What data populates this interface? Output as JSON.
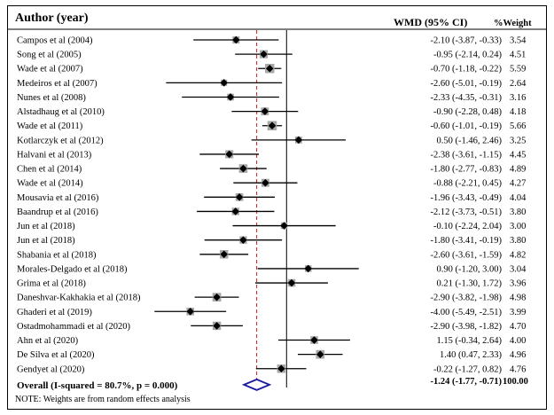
{
  "header": {
    "author_col": "Author (year)",
    "wmd_col": "WMD (95% CI)",
    "weight_col": "%Weight"
  },
  "footnote": "NOTE: Weights are from random effects analysis",
  "chart_data": {
    "type": "forest",
    "xlim": [
      -6.2,
      3.6
    ],
    "null_line": 0,
    "pooled_line": -1.24,
    "studies": [
      {
        "label": "Campos et al (2004)",
        "wmd": -2.1,
        "lo": -3.87,
        "hi": -0.33,
        "text": "-2.10 (-3.87, -0.33)",
        "weight": "3.54"
      },
      {
        "label": "Song et al (2005)",
        "wmd": -0.95,
        "lo": -2.14,
        "hi": 0.24,
        "text": "-0.95 (-2.14, 0.24)",
        "weight": "4.51"
      },
      {
        "label": "Wade et al (2007)",
        "wmd": -0.7,
        "lo": -1.18,
        "hi": -0.22,
        "text": "-0.70 (-1.18, -0.22)",
        "weight": "5.59"
      },
      {
        "label": "Medeiros et al (2007)",
        "wmd": -2.6,
        "lo": -5.01,
        "hi": -0.19,
        "text": "-2.60 (-5.01, -0.19)",
        "weight": "2.64"
      },
      {
        "label": "Nunes et al (2008)",
        "wmd": -2.33,
        "lo": -4.35,
        "hi": -0.31,
        "text": "-2.33 (-4.35, -0.31)",
        "weight": "3.16"
      },
      {
        "label": "Alstadhaug et al (2010)",
        "wmd": -0.9,
        "lo": -2.28,
        "hi": 0.48,
        "text": "-0.90 (-2.28, 0.48)",
        "weight": "4.18"
      },
      {
        "label": "Wade et al (2011)",
        "wmd": -0.6,
        "lo": -1.01,
        "hi": -0.19,
        "text": "-0.60 (-1.01, -0.19)",
        "weight": "5.66"
      },
      {
        "label": "Kotlarczyk et al (2012)",
        "wmd": 0.5,
        "lo": -1.46,
        "hi": 2.46,
        "text": "0.50 (-1.46, 2.46)",
        "weight": "3.25"
      },
      {
        "label": "Halvani et al (2013)",
        "wmd": -2.38,
        "lo": -3.61,
        "hi": -1.15,
        "text": "-2.38 (-3.61, -1.15)",
        "weight": "4.45"
      },
      {
        "label": "Chen et al (2014)",
        "wmd": -1.8,
        "lo": -2.77,
        "hi": -0.83,
        "text": "-1.80 (-2.77, -0.83)",
        "weight": "4.89"
      },
      {
        "label": "Wade et al (2014)",
        "wmd": -0.88,
        "lo": -2.21,
        "hi": 0.45,
        "text": "-0.88 (-2.21, 0.45)",
        "weight": "4.27"
      },
      {
        "label": "Mousavia et al (2016)",
        "wmd": -1.96,
        "lo": -3.43,
        "hi": -0.49,
        "text": "-1.96 (-3.43, -0.49)",
        "weight": "4.04"
      },
      {
        "label": "Baandrup et al (2016)",
        "wmd": -2.12,
        "lo": -3.73,
        "hi": -0.51,
        "text": "-2.12 (-3.73, -0.51)",
        "weight": "3.80"
      },
      {
        "label": "Jun et al (2018)",
        "wmd": -0.1,
        "lo": -2.24,
        "hi": 2.04,
        "text": "-0.10 (-2.24, 2.04)",
        "weight": "3.00"
      },
      {
        "label": "Jun et al (2018)",
        "wmd": -1.8,
        "lo": -3.41,
        "hi": -0.19,
        "text": "-1.80 (-3.41, -0.19)",
        "weight": "3.80"
      },
      {
        "label": "Shabania et al (2018)",
        "wmd": -2.6,
        "lo": -3.61,
        "hi": -1.59,
        "text": "-2.60 (-3.61, -1.59)",
        "weight": "4.82"
      },
      {
        "label": "Morales-Delgado et al (2018)",
        "wmd": 0.9,
        "lo": -1.2,
        "hi": 3.0,
        "text": "0.90 (-1.20, 3.00)",
        "weight": "3.04"
      },
      {
        "label": "Grima et al (2018)",
        "wmd": 0.21,
        "lo": -1.3,
        "hi": 1.72,
        "text": "0.21 (-1.30, 1.72)",
        "weight": "3.96"
      },
      {
        "label": "Daneshvar-Kakhakia et al (2018)",
        "wmd": -2.9,
        "lo": -3.82,
        "hi": -1.98,
        "text": "-2.90 (-3.82, -1.98)",
        "weight": "4.98"
      },
      {
        "label": "Ghaderi et al (2019)",
        "wmd": -4.0,
        "lo": -5.49,
        "hi": -2.51,
        "text": "-4.00 (-5.49, -2.51)",
        "weight": "3.99"
      },
      {
        "label": "Ostadmohammadi et al (2020)",
        "wmd": -2.9,
        "lo": -3.98,
        "hi": -1.82,
        "text": "-2.90 (-3.98, -1.82)",
        "weight": "4.70"
      },
      {
        "label": "Ahn et al (2020)",
        "wmd": 1.15,
        "lo": -0.34,
        "hi": 2.64,
        "text": "1.15 (-0.34, 2.64)",
        "weight": "4.00"
      },
      {
        "label": "De Silva et al (2020)",
        "wmd": 1.4,
        "lo": 0.47,
        "hi": 2.33,
        "text": "1.40 (0.47, 2.33)",
        "weight": "4.96"
      },
      {
        "label": "Gendyet al (2020)",
        "wmd": -0.22,
        "lo": -1.27,
        "hi": 0.82,
        "text": "-0.22 (-1.27, 0.82)",
        "weight": "4.76"
      }
    ],
    "overall": {
      "label": "Overall (I-squared = 80.7%, p = 0.000)",
      "wmd": -1.24,
      "lo": -1.77,
      "hi": -0.71,
      "text": "-1.24 (-1.77, -0.71)",
      "weight": "100.00"
    }
  }
}
